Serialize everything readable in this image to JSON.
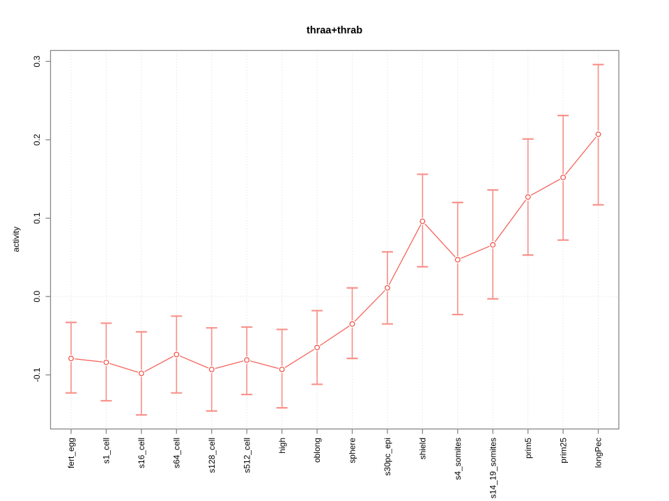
{
  "chart_data": {
    "type": "line",
    "title": "thraa+thrab",
    "xlabel": "",
    "ylabel": "activity",
    "categories": [
      "fert_egg",
      "s1_cell",
      "s16_cell",
      "s64_cell",
      "s128_cell",
      "s512_cell",
      "high",
      "oblong",
      "sphere",
      "s30pc_epi",
      "shield",
      "s4_somites",
      "s14_19_somites",
      "prim5",
      "prim25",
      "longPec"
    ],
    "series": [
      {
        "name": "thraa+thrab",
        "values": [
          -0.079,
          -0.084,
          -0.098,
          -0.074,
          -0.093,
          -0.081,
          -0.093,
          -0.065,
          -0.035,
          0.011,
          0.096,
          0.047,
          0.066,
          0.127,
          0.152,
          0.207
        ],
        "err_low": [
          -0.123,
          -0.133,
          -0.151,
          -0.123,
          -0.146,
          -0.125,
          -0.142,
          -0.112,
          -0.079,
          -0.035,
          0.038,
          -0.023,
          -0.003,
          0.053,
          0.072,
          0.117
        ],
        "err_high": [
          -0.033,
          -0.034,
          -0.045,
          -0.025,
          -0.04,
          -0.039,
          -0.042,
          -0.018,
          0.011,
          0.057,
          0.156,
          0.12,
          0.136,
          0.201,
          0.231,
          0.296
        ]
      }
    ],
    "ylim": [
      -0.169,
      0.314
    ],
    "yticks": [
      -0.1,
      0.0,
      0.1,
      0.2,
      0.3
    ],
    "grid": {
      "vertical_per_category": true,
      "horizontal_at": [
        0
      ],
      "style": "dotted"
    },
    "marker": "open-circle",
    "legend": "none",
    "colors": {
      "series_line": "#f4655c",
      "marker_stroke": "#f4554d",
      "error_bar": "#f8928b",
      "grid": "#d6d6d6",
      "axis": "#878787",
      "text": "#000000",
      "background": "#ffffff"
    }
  }
}
